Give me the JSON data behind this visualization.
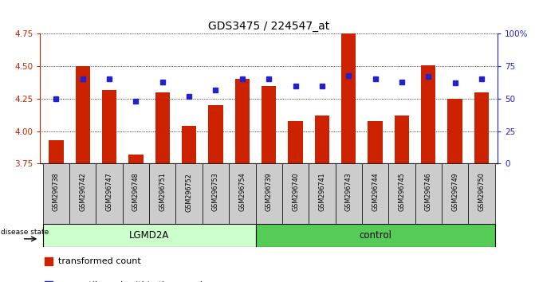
{
  "title": "GDS3475 / 224547_at",
  "samples": [
    "GSM296738",
    "GSM296742",
    "GSM296747",
    "GSM296748",
    "GSM296751",
    "GSM296752",
    "GSM296753",
    "GSM296754",
    "GSM296739",
    "GSM296740",
    "GSM296741",
    "GSM296743",
    "GSM296744",
    "GSM296745",
    "GSM296746",
    "GSM296749",
    "GSM296750"
  ],
  "groups": [
    "LGMD2A",
    "LGMD2A",
    "LGMD2A",
    "LGMD2A",
    "LGMD2A",
    "LGMD2A",
    "LGMD2A",
    "LGMD2A",
    "control",
    "control",
    "control",
    "control",
    "control",
    "control",
    "control",
    "control",
    "control"
  ],
  "transformed_count": [
    3.93,
    4.5,
    4.32,
    3.82,
    4.3,
    4.04,
    4.2,
    4.4,
    4.35,
    4.08,
    4.12,
    4.76,
    4.08,
    4.12,
    4.51,
    4.25,
    4.3
  ],
  "percentile_rank": [
    50,
    65,
    65,
    48,
    63,
    52,
    57,
    65,
    65,
    60,
    60,
    68,
    65,
    63,
    67,
    62,
    65
  ],
  "y_min": 3.75,
  "y_max": 4.75,
  "y_ticks": [
    3.75,
    4.0,
    4.25,
    4.5,
    4.75
  ],
  "y2_ticks": [
    0,
    25,
    50,
    75,
    100
  ],
  "bar_color": "#cc2200",
  "square_color": "#2222cc",
  "lgmd2a_color": "#ccffcc",
  "control_color": "#55cc55",
  "sample_bg_color": "#cccccc",
  "plot_bg_color": "#ffffff"
}
